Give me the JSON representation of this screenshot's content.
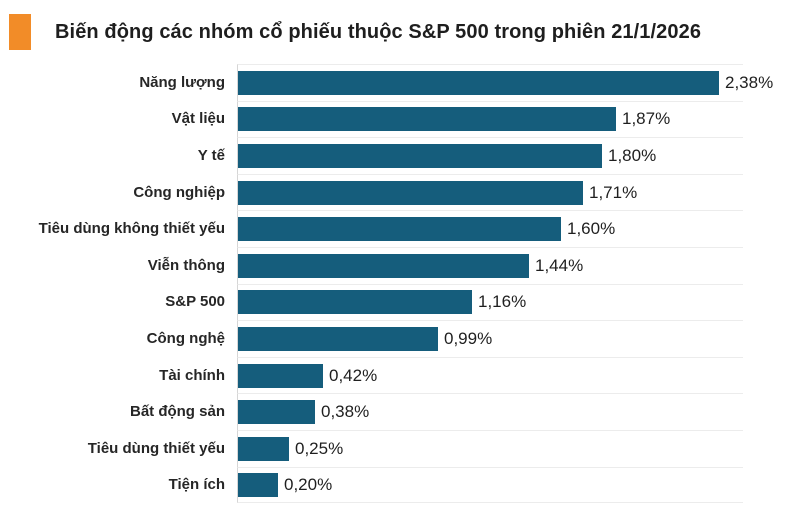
{
  "header": {
    "title": "Biến động các nhóm cổ phiếu thuộc S&P 500 trong phiên 21/1/2026"
  },
  "colors": {
    "bar": "#155D7C",
    "accent": "#F28C28",
    "grid": "#ececec",
    "axis": "#d6d6d6"
  },
  "chart_data": {
    "type": "bar",
    "orientation": "horizontal",
    "title": "Biến động các nhóm cổ phiếu thuộc S&P 500 trong phiên 21/1/2026",
    "xlabel": "",
    "ylabel": "",
    "xlim": [
      0,
      2.5
    ],
    "grid": "horizontal row separators on",
    "legend": "none",
    "unit": "%",
    "decimal_separator": ",",
    "categories": [
      "Năng lượng",
      "Vật liệu",
      "Y tế",
      "Công nghiệp",
      "Tiêu dùng không thiết yếu",
      "Viễn thông",
      "S&P 500",
      "Công nghệ",
      "Tài chính",
      "Bất động sản",
      "Tiêu dùng thiết yếu",
      "Tiện ích"
    ],
    "values": [
      2.38,
      1.87,
      1.8,
      1.71,
      1.6,
      1.44,
      1.16,
      0.99,
      0.42,
      0.38,
      0.25,
      0.2
    ],
    "value_labels": [
      "2,38%",
      "1,87%",
      "1,80%",
      "1,71%",
      "1,60%",
      "1,44%",
      "1,16%",
      "0,99%",
      "0,42%",
      "0,38%",
      "0,25%",
      "0,20%"
    ]
  }
}
